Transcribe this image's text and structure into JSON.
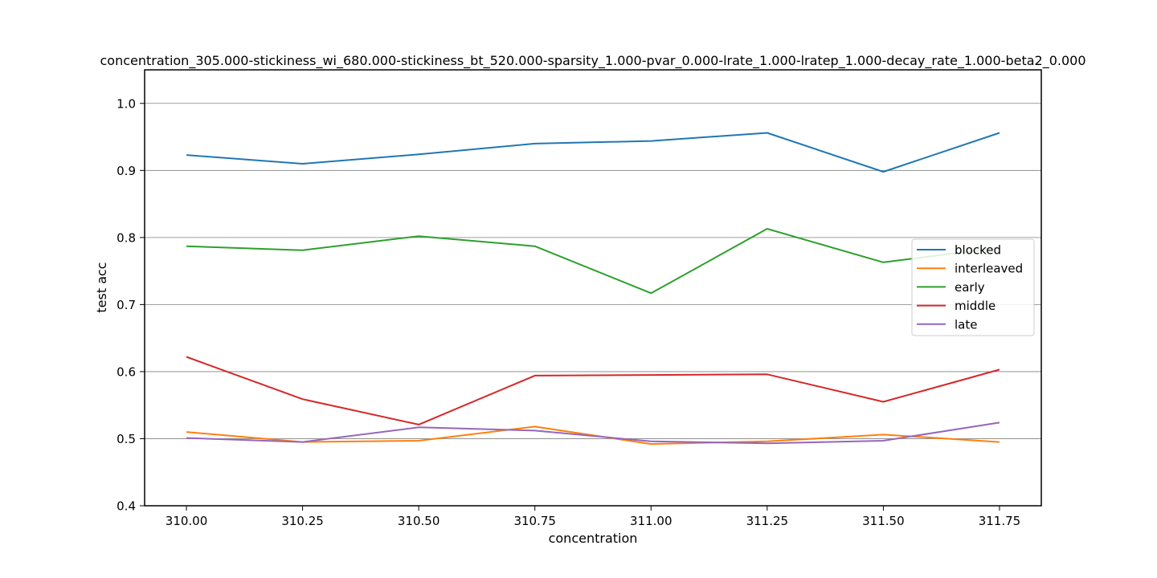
{
  "chart_data": {
    "type": "line",
    "title": "concentration_305.000-stickiness_wi_680.000-stickiness_bt_520.000-sparsity_1.000-pvar_0.000-lrate_1.000-lratep_1.000-decay_rate_1.000-beta2_0.000",
    "xlabel": "concentration",
    "ylabel": "test acc",
    "x": [
      310.0,
      310.25,
      310.5,
      310.75,
      311.0,
      311.25,
      311.5,
      311.75
    ],
    "x_tick_labels": [
      "310.00",
      "310.25",
      "310.50",
      "310.75",
      "311.00",
      "311.25",
      "311.50",
      "311.75"
    ],
    "y_ticks": [
      0.4,
      0.5,
      0.6,
      0.7,
      0.8,
      0.9,
      1.0
    ],
    "y_tick_labels": [
      "0.4",
      "0.5",
      "0.6",
      "0.7",
      "0.8",
      "0.9",
      "1.0"
    ],
    "xlim": [
      309.91,
      311.84
    ],
    "ylim": [
      0.4,
      1.05
    ],
    "grid": "horizontal",
    "legend_position": "center-right",
    "series": [
      {
        "name": "blocked",
        "color": "#1f77b4",
        "values": [
          0.923,
          0.91,
          0.924,
          0.94,
          0.944,
          0.956,
          0.898,
          0.956
        ]
      },
      {
        "name": "interleaved",
        "color": "#ff7f0e",
        "values": [
          0.51,
          0.495,
          0.497,
          0.518,
          0.492,
          0.496,
          0.506,
          0.495
        ]
      },
      {
        "name": "early",
        "color": "#2ca02c",
        "values": [
          0.787,
          0.781,
          0.802,
          0.787,
          0.717,
          0.813,
          0.763,
          0.785
        ]
      },
      {
        "name": "middle",
        "color": "#d62728",
        "values": [
          0.622,
          0.559,
          0.521,
          0.594,
          0.595,
          0.596,
          0.555,
          0.603
        ]
      },
      {
        "name": "late",
        "color": "#9467bd",
        "values": [
          0.501,
          0.495,
          0.517,
          0.512,
          0.496,
          0.493,
          0.497,
          0.524
        ]
      }
    ]
  }
}
